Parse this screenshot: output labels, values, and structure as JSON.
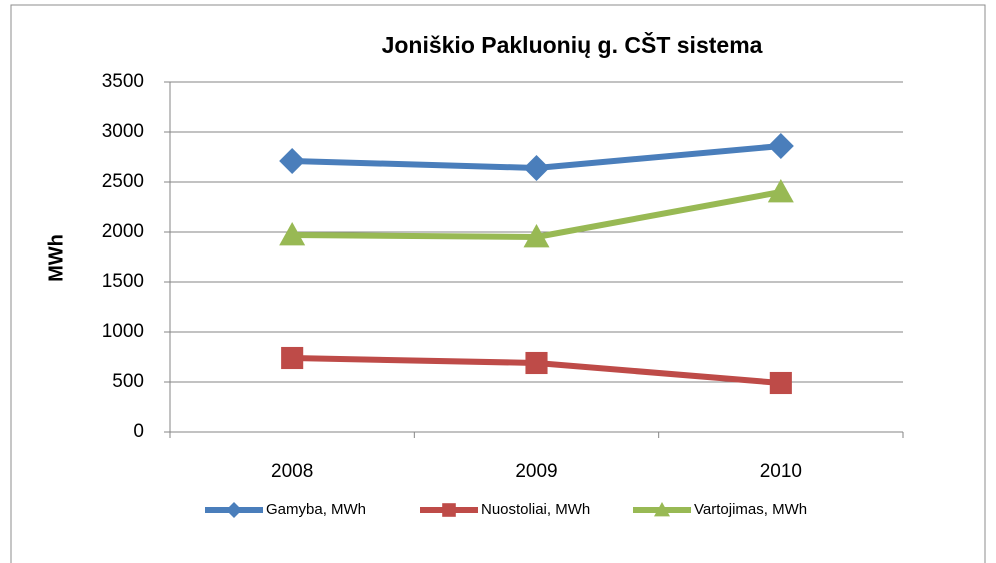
{
  "chart_data": {
    "type": "line",
    "title": "Joniškio Pakluonių g. CŠT sistema",
    "y_label": "MWh",
    "categories": [
      "2008",
      "2009",
      "2010"
    ],
    "series": [
      {
        "name": "Gamyba, MWh",
        "color": "#4a7ebb",
        "marker": "diamond",
        "values": [
          2710,
          2640,
          2860
        ]
      },
      {
        "name": "Nuostoliai, MWh",
        "color": "#be4b48",
        "marker": "square",
        "values": [
          740,
          690,
          490
        ]
      },
      {
        "name": "Vartojimas, MWh",
        "color": "#98b954",
        "marker": "triangle",
        "values": [
          1970,
          1950,
          2400
        ]
      }
    ],
    "ylim": [
      0,
      3500
    ],
    "yticks": [
      0,
      500,
      1000,
      1500,
      2000,
      2500,
      3000,
      3500
    ],
    "grid": true,
    "legend": "bottom"
  }
}
